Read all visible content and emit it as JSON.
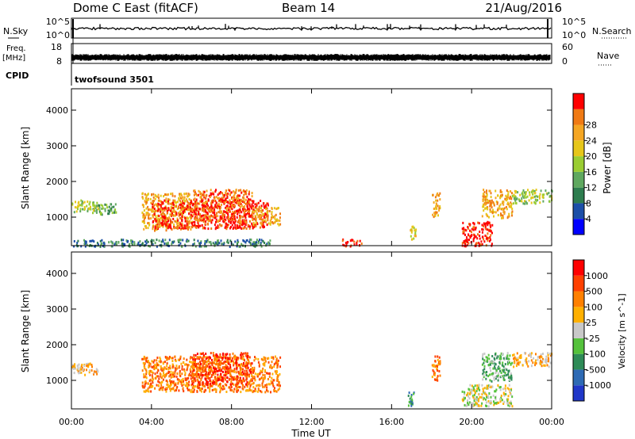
{
  "header": {
    "title": "Dome C East (fitACF)",
    "beam": "Beam 14",
    "date": "21/Aug/2016"
  },
  "top_panels": {
    "nsky_label": "N.Sky",
    "nsky_ticks": [
      "10^5",
      "10^0"
    ],
    "nsearch_label": "N.Search",
    "nsearch_ticks": [
      "10^5",
      "10^0"
    ],
    "freq_label_1": "Freq.",
    "freq_label_2": "[MHz]",
    "freq_ticks": [
      "18",
      "8"
    ],
    "nave_label": "Nave",
    "nave_ticks": [
      "60",
      "0"
    ],
    "cpid_label": "CPID",
    "cpid_value": "twofsound 3501"
  },
  "chart_data": [
    {
      "type": "heatmap",
      "name": "power",
      "ylabel": "Slant Range [km]",
      "xlabel": "",
      "xlim": [
        0,
        24
      ],
      "ylim": [
        200,
        4600
      ],
      "y_ticks": [
        "1000",
        "2000",
        "3000",
        "4000"
      ],
      "y_tick_values": [
        1000,
        2000,
        3000,
        4000
      ],
      "colorbar": {
        "label": "Power [dB]",
        "ticks": [
          "4",
          "8",
          "12",
          "16",
          "20",
          "24",
          "28"
        ],
        "colors": [
          "#0000ff",
          "#1c4fa8",
          "#2e7d4f",
          "#5fa85f",
          "#9acd32",
          "#e6c619",
          "#f5a623",
          "#f07a14",
          "#ff0000"
        ]
      },
      "regions": [
        {
          "t0": 0.0,
          "t1": 1.3,
          "r0": 1150,
          "r1": 1500,
          "level": 4
        },
        {
          "t0": 1.1,
          "t1": 2.2,
          "r0": 1100,
          "r1": 1400,
          "level": 3
        },
        {
          "t0": 3.5,
          "t1": 6.0,
          "r0": 650,
          "r1": 1700,
          "level": 6
        },
        {
          "t0": 4.0,
          "t1": 9.8,
          "r0": 700,
          "r1": 1500,
          "level": 8
        },
        {
          "t0": 6.0,
          "t1": 9.0,
          "r0": 900,
          "r1": 1800,
          "level": 7
        },
        {
          "t0": 9.0,
          "t1": 10.4,
          "r0": 800,
          "r1": 1300,
          "level": 6
        },
        {
          "t0": 13.5,
          "t1": 14.5,
          "r0": 200,
          "r1": 400,
          "level": 8
        },
        {
          "t0": 16.9,
          "t1": 17.2,
          "r0": 400,
          "r1": 800,
          "level": 5
        },
        {
          "t0": 18.0,
          "t1": 18.4,
          "r0": 1000,
          "r1": 1700,
          "level": 6
        },
        {
          "t0": 19.5,
          "t1": 21.0,
          "r0": 200,
          "r1": 900,
          "level": 8
        },
        {
          "t0": 20.5,
          "t1": 22.0,
          "r0": 1000,
          "r1": 1800,
          "level": 6
        },
        {
          "t0": 22.0,
          "t1": 24.0,
          "r0": 1400,
          "r1": 1800,
          "level": 4
        },
        {
          "t0": 0.0,
          "t1": 10.0,
          "r0": 200,
          "r1": 400,
          "level": 2
        }
      ]
    },
    {
      "type": "heatmap",
      "name": "velocity",
      "ylabel": "Slant Range [km]",
      "xlabel": "Time UT",
      "xlim": [
        0,
        24
      ],
      "ylim": [
        200,
        4600
      ],
      "x_ticks": [
        "00:00",
        "04:00",
        "08:00",
        "12:00",
        "16:00",
        "20:00",
        "00:00"
      ],
      "x_tick_values": [
        0,
        4,
        8,
        12,
        16,
        20,
        24
      ],
      "y_ticks": [
        "1000",
        "2000",
        "3000",
        "4000"
      ],
      "y_tick_values": [
        1000,
        2000,
        3000,
        4000
      ],
      "colorbar": {
        "label": "Velocity [m s^-1]",
        "ticks": [
          "1000",
          "500",
          "100",
          "25",
          "-25",
          "-100",
          "-500",
          "-1000"
        ],
        "colors": [
          "#2037c8",
          "#2e6ab4",
          "#2e8b57",
          "#55c23c",
          "#c8c8c8",
          "#ffb000",
          "#ff8000",
          "#ff4000",
          "#ff0000"
        ]
      },
      "regions": [
        {
          "t0": 0.0,
          "t1": 1.3,
          "r0": 1150,
          "r1": 1500,
          "level": 5
        },
        {
          "t0": 3.5,
          "t1": 10.4,
          "r0": 700,
          "r1": 1700,
          "level": 6
        },
        {
          "t0": 6.0,
          "t1": 9.0,
          "r0": 900,
          "r1": 1800,
          "level": 7
        },
        {
          "t0": 18.0,
          "t1": 18.4,
          "r0": 1000,
          "r1": 1700,
          "level": 6
        },
        {
          "t0": 19.5,
          "t1": 22.0,
          "r0": 300,
          "r1": 900,
          "level": 4
        },
        {
          "t0": 20.5,
          "t1": 22.0,
          "r0": 1000,
          "r1": 1800,
          "level": 3
        },
        {
          "t0": 22.0,
          "t1": 24.0,
          "r0": 1400,
          "r1": 1800,
          "level": 5
        },
        {
          "t0": 16.8,
          "t1": 17.1,
          "r0": 300,
          "r1": 700,
          "level": 2
        }
      ]
    }
  ]
}
